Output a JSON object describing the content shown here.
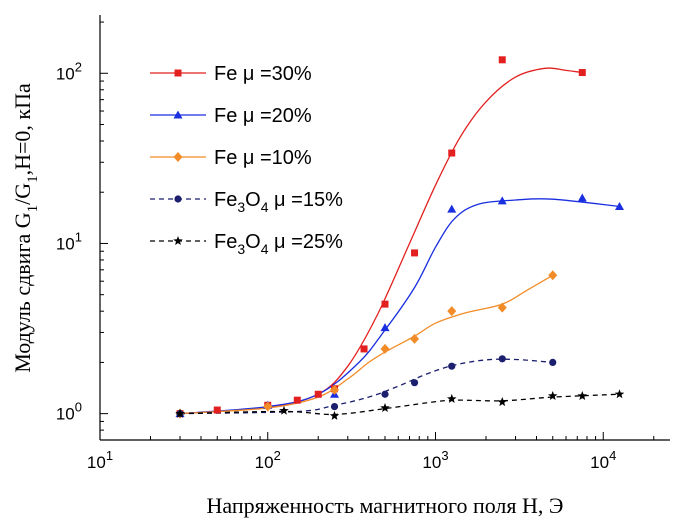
{
  "chart_data": {
    "type": "scatter",
    "xscale": "log",
    "yscale": "log",
    "xlim": [
      10,
      25000
    ],
    "ylim": [
      0.7,
      220
    ],
    "x_ticks": [
      {
        "value": 10,
        "base": "10",
        "exp": "1"
      },
      {
        "value": 100,
        "base": "10",
        "exp": "2"
      },
      {
        "value": 1000,
        "base": "10",
        "exp": "3"
      },
      {
        "value": 10000,
        "base": "10",
        "exp": "4"
      }
    ],
    "y_ticks": [
      {
        "value": 1,
        "base": "10",
        "exp": "0"
      },
      {
        "value": 10,
        "base": "10",
        "exp": "1"
      },
      {
        "value": 100,
        "base": "10",
        "exp": "2"
      }
    ],
    "xlabel": "Напряженность магнитного поля H, Э",
    "ylabel": {
      "prefix": "Модуль сдвига G",
      "sub1": "1",
      "mid": "/G",
      "sub2": "1",
      "suffix": ",H=0, кПа"
    },
    "legend_position": "upper-left",
    "series": [
      {
        "name": "Fe μ =30%",
        "legend": {
          "base": "Fe",
          "sub": "",
          "rest": " μ =30%"
        },
        "color": "#e32020",
        "marker": "square",
        "dash": "solid",
        "x": [
          30,
          50,
          100,
          150,
          200,
          250,
          375,
          500,
          750,
          1250,
          2500,
          7500
        ],
        "y": [
          1.0,
          1.05,
          1.12,
          1.2,
          1.3,
          1.4,
          2.4,
          4.4,
          8.8,
          34,
          120,
          101
        ],
        "fit": [
          [
            30,
            1.0
          ],
          [
            100,
            1.09
          ],
          [
            200,
            1.3
          ],
          [
            300,
            1.9
          ],
          [
            450,
            3.8
          ],
          [
            700,
            10
          ],
          [
            1000,
            22
          ],
          [
            1400,
            42
          ],
          [
            2000,
            68
          ],
          [
            3000,
            95
          ],
          [
            4500,
            107
          ],
          [
            6000,
            104
          ],
          [
            7500,
            101
          ]
        ]
      },
      {
        "name": "Fe μ =20%",
        "legend": {
          "base": "Fe",
          "sub": "",
          "rest": " μ =20%"
        },
        "color": "#1a2fe0",
        "marker": "triangle",
        "dash": "solid",
        "x": [
          30,
          100,
          250,
          500,
          1250,
          2500,
          7500,
          12500
        ],
        "y": [
          1.0,
          1.12,
          1.3,
          3.2,
          15.9,
          17.8,
          18.5,
          16.5
        ],
        "fit": [
          [
            30,
            1.0
          ],
          [
            100,
            1.1
          ],
          [
            200,
            1.3
          ],
          [
            350,
            2.0
          ],
          [
            500,
            3.1
          ],
          [
            750,
            5.5
          ],
          [
            1000,
            9.5
          ],
          [
            1300,
            14
          ],
          [
            1800,
            17
          ],
          [
            3000,
            18
          ],
          [
            5000,
            18.2
          ],
          [
            12500,
            16.5
          ]
        ]
      },
      {
        "name": "Fe μ =10%",
        "legend": {
          "base": "Fe",
          "sub": "",
          "rest": " μ =10%"
        },
        "color": "#f28c28",
        "marker": "diamond",
        "dash": "solid",
        "x": [
          30,
          100,
          250,
          500,
          750,
          1250,
          2500,
          5000
        ],
        "y": [
          1.0,
          1.1,
          1.38,
          2.4,
          2.75,
          4.0,
          4.2,
          6.5
        ],
        "fit": [
          [
            30,
            1.0
          ],
          [
            100,
            1.08
          ],
          [
            200,
            1.25
          ],
          [
            300,
            1.6
          ],
          [
            400,
            2.0
          ],
          [
            500,
            2.3
          ],
          [
            750,
            2.85
          ],
          [
            1000,
            3.4
          ],
          [
            1500,
            3.9
          ],
          [
            2500,
            4.4
          ],
          [
            3500,
            5.3
          ],
          [
            5000,
            6.5
          ]
        ]
      },
      {
        "name": "Fe3O4 μ =15%",
        "legend": {
          "base": "Fe",
          "sub": "3",
          "base2": "O",
          "sub2": "4",
          "rest": " μ =15%"
        },
        "color": "#1b1f6e",
        "marker": "circle",
        "dash": "dashed",
        "x": [
          30,
          250,
          500,
          750,
          1250,
          2500,
          5000
        ],
        "y": [
          1.0,
          1.1,
          1.3,
          1.52,
          1.9,
          2.1,
          2.0
        ],
        "fit": [
          [
            30,
            1.0
          ],
          [
            150,
            1.03
          ],
          [
            250,
            1.12
          ],
          [
            400,
            1.25
          ],
          [
            600,
            1.45
          ],
          [
            900,
            1.72
          ],
          [
            1300,
            1.93
          ],
          [
            2000,
            2.07
          ],
          [
            3000,
            2.08
          ],
          [
            5000,
            2.0
          ]
        ]
      },
      {
        "name": "Fe3O4 μ =25%",
        "legend": {
          "base": "Fe",
          "sub": "3",
          "base2": "O",
          "sub2": "4",
          "rest": " μ =25%"
        },
        "color": "#000000",
        "marker": "star",
        "dash": "dashed",
        "x": [
          30,
          125,
          250,
          500,
          1250,
          2500,
          5000,
          7500,
          12500
        ],
        "y": [
          1.0,
          1.04,
          0.97,
          1.08,
          1.22,
          1.17,
          1.27,
          1.27,
          1.3
        ],
        "fit": [
          [
            30,
            1.0
          ],
          [
            125,
            1.03
          ],
          [
            250,
            0.99
          ],
          [
            500,
            1.07
          ],
          [
            900,
            1.16
          ],
          [
            1300,
            1.2
          ],
          [
            2500,
            1.19
          ],
          [
            5000,
            1.25
          ],
          [
            12500,
            1.3
          ]
        ]
      }
    ]
  }
}
